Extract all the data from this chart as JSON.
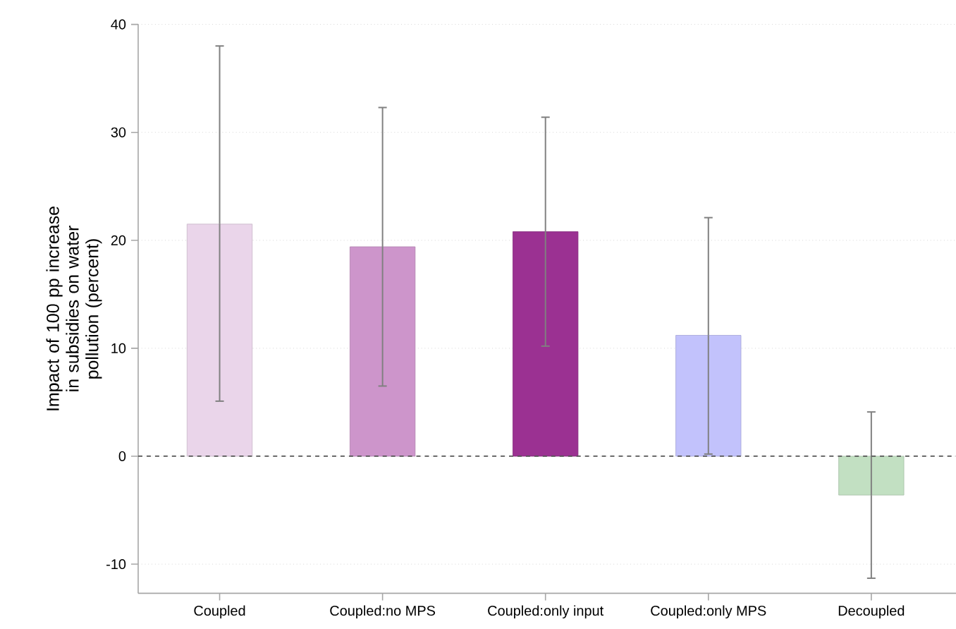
{
  "chart_data": {
    "type": "bar",
    "ylabel": "Impact of 100 pp increase in subsidies on water pollution (percent)",
    "categories": [
      "Coupled",
      "Coupled:no MPS",
      "Coupled:only input",
      "Coupled:only MPS",
      "Decoupled"
    ],
    "values": [
      21.5,
      19.4,
      20.8,
      11.2,
      -3.6
    ],
    "colors": [
      "#ead5ea",
      "#cd95cb",
      "#9b3192",
      "#c2c2fc",
      "#c2e0c2"
    ],
    "errors": [
      [
        5.1,
        38.0
      ],
      [
        6.5,
        32.3
      ],
      [
        10.2,
        31.4
      ],
      [
        0.2,
        22.1
      ],
      [
        -11.3,
        4.1
      ]
    ],
    "ylim": [
      -12.7,
      40
    ],
    "yticks": [
      -10,
      0,
      10,
      20,
      30,
      40
    ],
    "grid": "y",
    "ref_lines": [
      {
        "axis": "y",
        "value": 0,
        "line_style": "dashed",
        "color": "#555555"
      }
    ]
  }
}
